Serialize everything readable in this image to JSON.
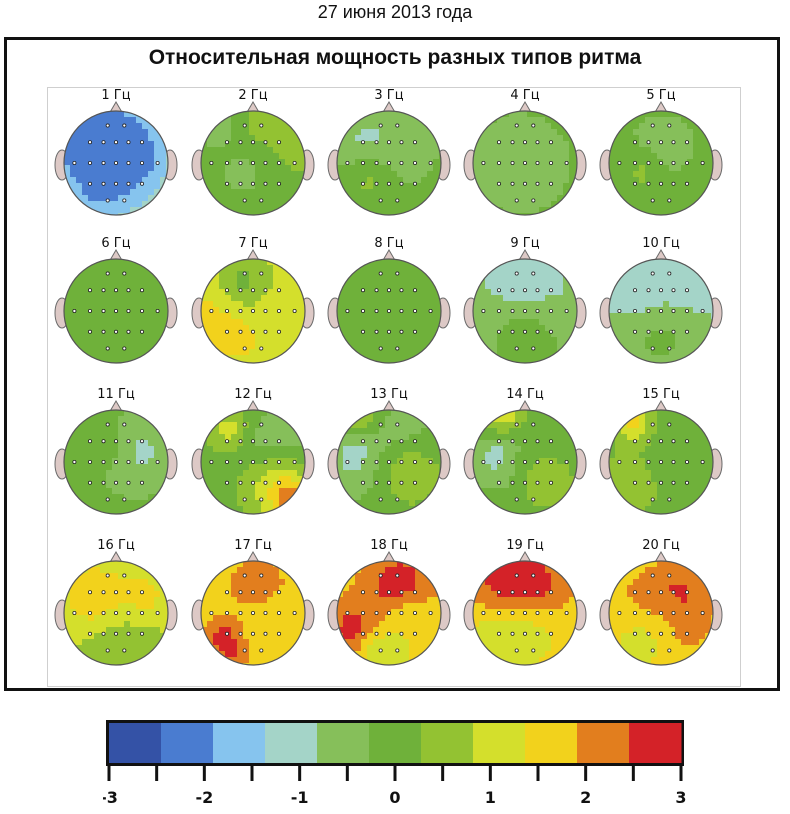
{
  "header": {
    "date": "27 июня 2013 года"
  },
  "figure": {
    "title": "Относительная мощность разных типов ритма"
  },
  "maps": [
    {
      "label": "1 Гц",
      "base": -0.5,
      "blobs": [
        [
          0.35,
          0.35,
          0.35,
          -2.6
        ],
        [
          0.55,
          0.45,
          0.3,
          -2.4
        ],
        [
          0.35,
          0.75,
          0.2,
          -2.0
        ]
      ]
    },
    {
      "label": "2 Гц",
      "base": 0.1,
      "blobs": [
        [
          0.25,
          0.2,
          0.15,
          -2.8
        ],
        [
          0.55,
          0.35,
          0.35,
          0.9
        ],
        [
          0.4,
          0.6,
          0.3,
          -0.4
        ]
      ]
    },
    {
      "label": "3 Гц",
      "base": 0.0,
      "blobs": [
        [
          0.35,
          0.35,
          0.3,
          -1.1
        ],
        [
          0.65,
          0.35,
          0.2,
          -0.7
        ],
        [
          0.3,
          0.7,
          0.2,
          0.3
        ]
      ]
    },
    {
      "label": "4 Гц",
      "base": 0.0,
      "blobs": [
        [
          0.45,
          0.5,
          0.35,
          -0.7
        ]
      ]
    },
    {
      "label": "5 Гц",
      "base": 0.0,
      "blobs": [
        [
          0.5,
          0.35,
          0.2,
          -1.0
        ],
        [
          0.3,
          0.6,
          0.2,
          0.3
        ]
      ]
    },
    {
      "label": "6 Гц",
      "base": 0.0,
      "blobs": [
        [
          0.5,
          0.5,
          0.5,
          -0.1
        ]
      ]
    },
    {
      "label": "7 Гц",
      "base": 0.9,
      "blobs": [
        [
          0.3,
          0.55,
          0.35,
          1.8
        ],
        [
          0.7,
          0.5,
          0.25,
          1.2
        ],
        [
          0.4,
          0.2,
          0.2,
          0.2
        ]
      ]
    },
    {
      "label": "8 Гц",
      "base": 0.0,
      "blobs": [
        [
          0.5,
          0.5,
          0.5,
          0.05
        ]
      ]
    },
    {
      "label": "9 Гц",
      "base": -0.6,
      "blobs": [
        [
          0.5,
          0.35,
          0.3,
          -1.3
        ],
        [
          0.5,
          0.8,
          0.3,
          0.0
        ]
      ]
    },
    {
      "label": "10 Гц",
      "base": -0.9,
      "blobs": [
        [
          0.35,
          0.4,
          0.15,
          -1.6
        ],
        [
          0.7,
          0.25,
          0.2,
          -1.5
        ],
        [
          0.5,
          0.8,
          0.3,
          -0.2
        ]
      ]
    },
    {
      "label": "11 Гц",
      "base": -0.1,
      "blobs": [
        [
          0.7,
          0.4,
          0.25,
          -1.0
        ],
        [
          0.3,
          0.3,
          0.2,
          0.2
        ]
      ]
    },
    {
      "label": "12 Гц",
      "base": 0.0,
      "blobs": [
        [
          0.3,
          0.2,
          0.15,
          1.3
        ],
        [
          0.75,
          0.35,
          0.25,
          -0.9
        ],
        [
          0.75,
          0.75,
          0.25,
          1.2
        ],
        [
          0.85,
          0.85,
          0.12,
          2.4
        ]
      ]
    },
    {
      "label": "13 Гц",
      "base": 0.0,
      "blobs": [
        [
          0.25,
          0.15,
          0.12,
          2.2
        ],
        [
          0.25,
          0.45,
          0.25,
          -1.2
        ],
        [
          0.65,
          0.3,
          0.2,
          -0.9
        ],
        [
          0.7,
          0.6,
          0.25,
          0.6
        ]
      ]
    },
    {
      "label": "14 Гц",
      "base": 0.1,
      "blobs": [
        [
          0.3,
          0.15,
          0.15,
          2.3
        ],
        [
          0.25,
          0.45,
          0.22,
          -1.1
        ],
        [
          0.65,
          0.35,
          0.22,
          -0.4
        ],
        [
          0.7,
          0.65,
          0.2,
          0.6
        ]
      ]
    },
    {
      "label": "15 Гц",
      "base": 0.1,
      "blobs": [
        [
          0.25,
          0.15,
          0.12,
          2.0
        ],
        [
          0.3,
          0.65,
          0.2,
          0.8
        ],
        [
          0.6,
          0.5,
          0.3,
          0.1
        ]
      ]
    },
    {
      "label": "16 Гц",
      "base": 1.0,
      "blobs": [
        [
          0.55,
          0.6,
          0.35,
          0.2
        ],
        [
          0.3,
          0.35,
          0.25,
          1.8
        ],
        [
          0.75,
          0.35,
          0.25,
          1.5
        ],
        [
          0.6,
          0.9,
          0.2,
          0.3
        ]
      ]
    },
    {
      "label": "17 Гц",
      "base": 1.6,
      "blobs": [
        [
          0.55,
          0.25,
          0.18,
          2.5
        ],
        [
          0.25,
          0.75,
          0.15,
          2.9
        ],
        [
          0.35,
          0.85,
          0.1,
          3.0
        ],
        [
          0.7,
          0.7,
          0.25,
          1.4
        ]
      ]
    },
    {
      "label": "18 Гц",
      "base": 1.6,
      "blobs": [
        [
          0.6,
          0.25,
          0.25,
          2.9
        ],
        [
          0.2,
          0.7,
          0.2,
          3.0
        ],
        [
          0.75,
          0.6,
          0.2,
          1.5
        ],
        [
          0.45,
          0.9,
          0.2,
          1.0
        ]
      ]
    },
    {
      "label": "19 Гц",
      "base": 1.5,
      "blobs": [
        [
          0.5,
          0.3,
          0.3,
          2.9
        ],
        [
          0.4,
          0.2,
          0.2,
          3.0
        ],
        [
          0.6,
          0.75,
          0.25,
          1.3
        ],
        [
          0.25,
          0.75,
          0.2,
          1.0
        ]
      ]
    },
    {
      "label": "20 Гц",
      "base": 1.6,
      "blobs": [
        [
          0.62,
          0.4,
          0.2,
          3.0
        ],
        [
          0.5,
          0.55,
          0.3,
          2.4
        ],
        [
          0.3,
          0.8,
          0.25,
          1.2
        ]
      ]
    }
  ],
  "electrodes": [
    [
      0.42,
      0.14
    ],
    [
      0.58,
      0.14
    ],
    [
      0.25,
      0.3
    ],
    [
      0.38,
      0.3
    ],
    [
      0.5,
      0.3
    ],
    [
      0.62,
      0.3
    ],
    [
      0.75,
      0.3
    ],
    [
      0.1,
      0.5
    ],
    [
      0.25,
      0.5
    ],
    [
      0.38,
      0.5
    ],
    [
      0.5,
      0.5
    ],
    [
      0.62,
      0.5
    ],
    [
      0.75,
      0.5
    ],
    [
      0.9,
      0.5
    ],
    [
      0.25,
      0.7
    ],
    [
      0.38,
      0.7
    ],
    [
      0.5,
      0.7
    ],
    [
      0.62,
      0.7
    ],
    [
      0.75,
      0.7
    ],
    [
      0.42,
      0.86
    ],
    [
      0.58,
      0.86
    ]
  ],
  "colorbar": {
    "colors": [
      "#3452a6",
      "#4a7cd0",
      "#86c4ee",
      "#a4d4c8",
      "#86bf5a",
      "#6fb13a",
      "#93c232",
      "#d4df2c",
      "#f2d21c",
      "#e27e1e",
      "#d42228"
    ],
    "tick_labels": [
      "-3",
      "-2",
      "-1",
      "0",
      "1",
      "2",
      "3"
    ],
    "range": [
      -3,
      3
    ]
  }
}
